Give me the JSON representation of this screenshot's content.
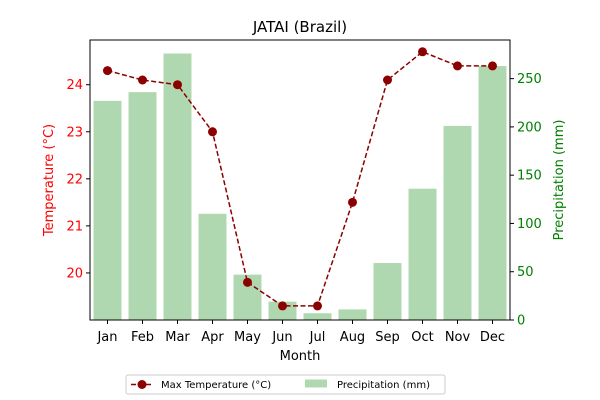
{
  "chart_data": {
    "type": "bar+line",
    "title": "JATAI (Brazil)",
    "xlabel": "Month",
    "categories": [
      "Jan",
      "Feb",
      "Mar",
      "Apr",
      "May",
      "Jun",
      "Jul",
      "Aug",
      "Sep",
      "Oct",
      "Nov",
      "Dec"
    ],
    "series": [
      {
        "name": "Max Temperature (°C)",
        "type": "line",
        "axis": "left",
        "color": "#8b0000",
        "values": [
          24.3,
          24.1,
          24.0,
          23.0,
          19.8,
          19.3,
          19.3,
          21.5,
          24.1,
          24.7,
          24.4,
          24.4
        ]
      },
      {
        "name": "Precipitation (mm)",
        "type": "bar",
        "axis": "right",
        "color": "#b0d8b0",
        "values": [
          227,
          236,
          276,
          110,
          47,
          19,
          7,
          11,
          59,
          136,
          201,
          263
        ]
      }
    ],
    "y_left": {
      "label": "Temperature (°C)",
      "color": "#ff0000",
      "range": [
        19.0,
        24.95
      ],
      "ticks": [
        20,
        21,
        22,
        23,
        24
      ]
    },
    "y_right": {
      "label": "Precipitation (mm)",
      "color": "#008000",
      "range": [
        0,
        290
      ],
      "ticks": [
        0,
        50,
        100,
        150,
        200,
        250
      ]
    },
    "legend_position": "bottom-center",
    "grid": false
  }
}
